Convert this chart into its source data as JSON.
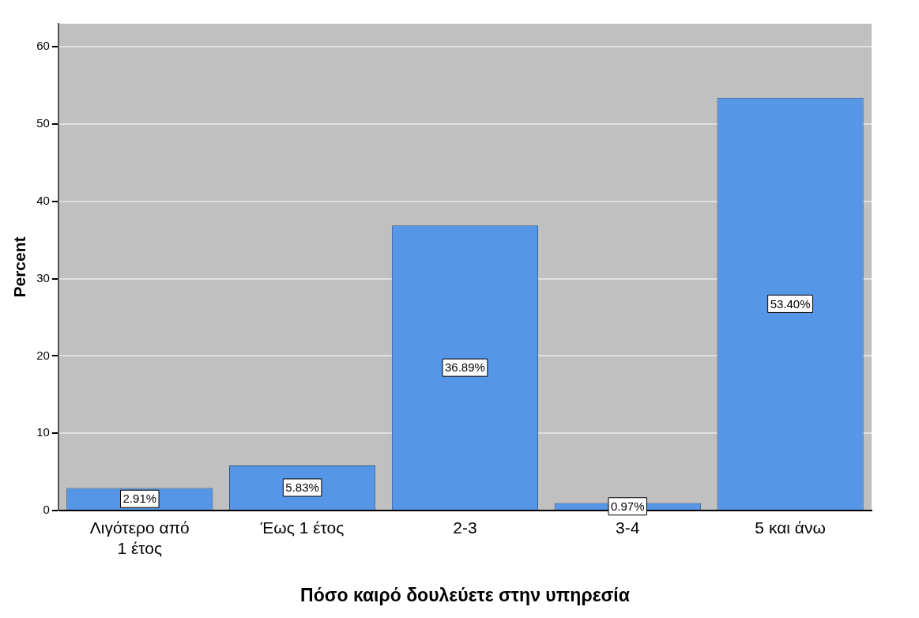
{
  "chart_data": {
    "type": "bar",
    "xlabel": "Πόσο καιρό δουλεύετε στην υπηρεσία",
    "ylabel": "Percent",
    "categories": [
      "Λιγότερο από 1 έτος",
      "Έως 1 έτος",
      "2-3",
      "3-4",
      "5 και άνω"
    ],
    "values": [
      2.91,
      5.83,
      36.89,
      0.97,
      53.4
    ],
    "value_labels": [
      "2.91%",
      "5.83%",
      "36.89%",
      "0.97%",
      "53.40%"
    ],
    "color": "#5596e6",
    "ylim": [
      0,
      63
    ],
    "yticks": [
      0,
      10,
      20,
      30,
      40,
      50,
      60
    ],
    "grid": "y",
    "legend": false
  }
}
